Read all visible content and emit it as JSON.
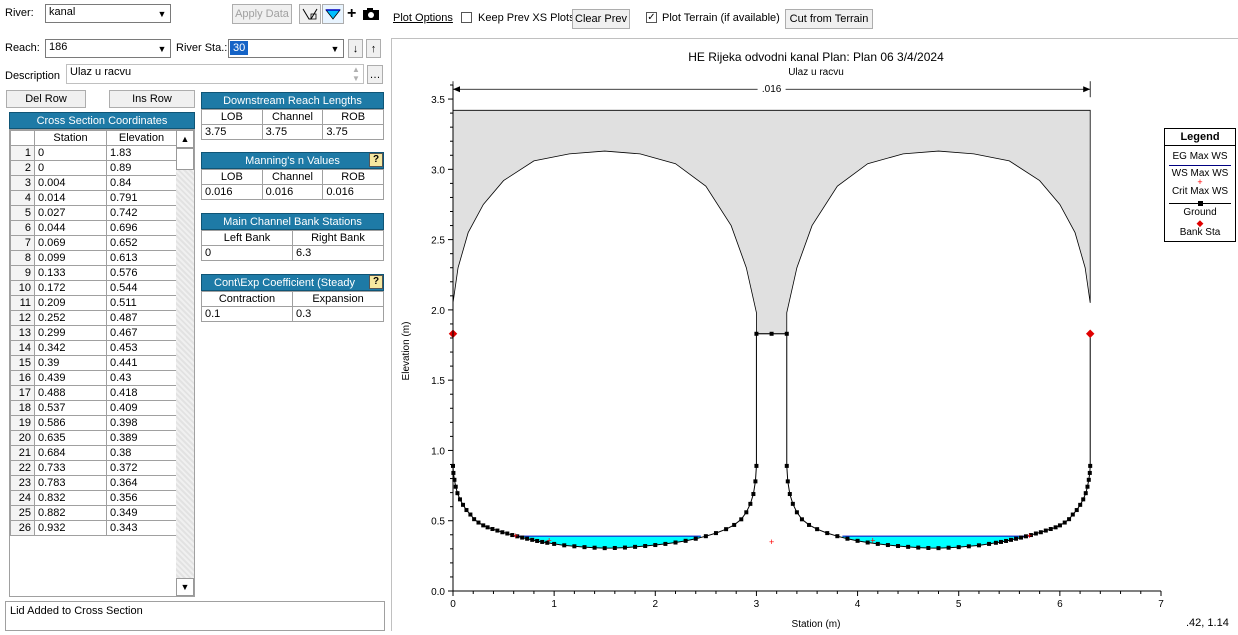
{
  "river": {
    "label": "River:",
    "value": "kanal"
  },
  "reach": {
    "label": "Reach:",
    "value": "186"
  },
  "river_sta": {
    "label": "River Sta.:",
    "value": "30"
  },
  "apply_data": "Apply Data",
  "description": {
    "label": "Description",
    "value": "Ulaz u racvu"
  },
  "del_row": "Del Row",
  "ins_row": "Ins Row",
  "coords": {
    "title": "Cross Section Coordinates",
    "col_station": "Station",
    "col_elevation": "Elevation",
    "rows": [
      {
        "n": "1",
        "station": "0",
        "elevation": "1.83"
      },
      {
        "n": "2",
        "station": "0",
        "elevation": "0.89"
      },
      {
        "n": "3",
        "station": "0.004",
        "elevation": "0.84"
      },
      {
        "n": "4",
        "station": "0.014",
        "elevation": "0.791"
      },
      {
        "n": "5",
        "station": "0.027",
        "elevation": "0.742"
      },
      {
        "n": "6",
        "station": "0.044",
        "elevation": "0.696"
      },
      {
        "n": "7",
        "station": "0.069",
        "elevation": "0.652"
      },
      {
        "n": "8",
        "station": "0.099",
        "elevation": "0.613"
      },
      {
        "n": "9",
        "station": "0.133",
        "elevation": "0.576"
      },
      {
        "n": "10",
        "station": "0.172",
        "elevation": "0.544"
      },
      {
        "n": "11",
        "station": "0.209",
        "elevation": "0.511"
      },
      {
        "n": "12",
        "station": "0.252",
        "elevation": "0.487"
      },
      {
        "n": "13",
        "station": "0.299",
        "elevation": "0.467"
      },
      {
        "n": "14",
        "station": "0.342",
        "elevation": "0.453"
      },
      {
        "n": "15",
        "station": "0.39",
        "elevation": "0.441"
      },
      {
        "n": "16",
        "station": "0.439",
        "elevation": "0.43"
      },
      {
        "n": "17",
        "station": "0.488",
        "elevation": "0.418"
      },
      {
        "n": "18",
        "station": "0.537",
        "elevation": "0.409"
      },
      {
        "n": "19",
        "station": "0.586",
        "elevation": "0.398"
      },
      {
        "n": "20",
        "station": "0.635",
        "elevation": "0.389"
      },
      {
        "n": "21",
        "station": "0.684",
        "elevation": "0.38"
      },
      {
        "n": "22",
        "station": "0.733",
        "elevation": "0.372"
      },
      {
        "n": "23",
        "station": "0.783",
        "elevation": "0.364"
      },
      {
        "n": "24",
        "station": "0.832",
        "elevation": "0.356"
      },
      {
        "n": "25",
        "station": "0.882",
        "elevation": "0.349"
      },
      {
        "n": "26",
        "station": "0.932",
        "elevation": "0.343"
      }
    ]
  },
  "reach_lengths": {
    "title": "Downstream Reach Lengths",
    "lob_label": "LOB",
    "channel_label": "Channel",
    "rob_label": "ROB",
    "lob": "3.75",
    "channel": "3.75",
    "rob": "3.75"
  },
  "manning": {
    "title": "Manning's n Values",
    "help": "?",
    "lob_label": "LOB",
    "channel_label": "Channel",
    "rob_label": "ROB",
    "lob": "0.016",
    "channel": "0.016",
    "rob": "0.016"
  },
  "bank": {
    "title": "Main Channel Bank Stations",
    "left_label": "Left Bank",
    "right_label": "Right Bank",
    "left": "0",
    "right": "6.3"
  },
  "contexp": {
    "title": "Cont\\Exp Coefficient (Steady",
    "help": "?",
    "contraction_label": "Contraction",
    "expansion_label": "Expansion",
    "contraction": "0.1",
    "expansion": "0.3"
  },
  "status_text": "Lid Added to Cross Section",
  "plot_toolbar": {
    "plot_options": "Plot Options",
    "keep_prev": "Keep Prev XS Plots",
    "keep_prev_checked": false,
    "clear_prev": "Clear Prev",
    "plot_terrain": "Plot Terrain (if available)",
    "plot_terrain_checked": true,
    "cut_from_terrain": "Cut from Terrain"
  },
  "coord_readout": ".42, 1.14",
  "icons": [
    "zoom-xs-icon",
    "water-surface-icon",
    "add-icon",
    "camera-icon",
    "arrow-down-icon",
    "arrow-up-icon",
    "ellipsis-icon"
  ],
  "colors": {
    "header_blue": "#1e7aa6",
    "water": "#00ffff",
    "lid_fill": "#e0e0e0",
    "bank_sta": "#e00000",
    "crit": "#ff0000"
  },
  "chart_data": {
    "type": "line",
    "title": "HE Rijeka odvodni kanal      Plan: Plan 06    3/4/2024",
    "subtitle": "Ulaz u racvu",
    "xlabel": "Station (m)",
    "ylabel": "Elevation (m)",
    "xlim": [
      0,
      7
    ],
    "ylim": [
      0,
      3.6
    ],
    "xticks": [
      "0",
      "1",
      "2",
      "3",
      "4",
      "5",
      "6",
      "7"
    ],
    "yticks": [
      "0.0",
      "0.5",
      "1.0",
      "1.5",
      "2.0",
      "2.5",
      "3.0",
      "3.5"
    ],
    "manning_label": ".016",
    "lid_top": 3.42,
    "ground": [
      [
        0,
        1.83
      ],
      [
        0,
        0.89
      ],
      [
        0.004,
        0.84
      ],
      [
        0.014,
        0.791
      ],
      [
        0.027,
        0.742
      ],
      [
        0.044,
        0.696
      ],
      [
        0.069,
        0.652
      ],
      [
        0.099,
        0.613
      ],
      [
        0.133,
        0.576
      ],
      [
        0.172,
        0.544
      ],
      [
        0.209,
        0.511
      ],
      [
        0.252,
        0.487
      ],
      [
        0.299,
        0.467
      ],
      [
        0.342,
        0.453
      ],
      [
        0.39,
        0.441
      ],
      [
        0.439,
        0.43
      ],
      [
        0.488,
        0.418
      ],
      [
        0.537,
        0.409
      ],
      [
        0.586,
        0.398
      ],
      [
        0.635,
        0.389
      ],
      [
        0.684,
        0.38
      ],
      [
        0.733,
        0.372
      ],
      [
        0.783,
        0.364
      ],
      [
        0.832,
        0.356
      ],
      [
        0.882,
        0.349
      ],
      [
        0.932,
        0.343
      ],
      [
        1.0,
        0.335
      ],
      [
        1.1,
        0.325
      ],
      [
        1.2,
        0.318
      ],
      [
        1.3,
        0.312
      ],
      [
        1.4,
        0.308
      ],
      [
        1.5,
        0.305
      ],
      [
        1.6,
        0.306
      ],
      [
        1.7,
        0.309
      ],
      [
        1.8,
        0.314
      ],
      [
        1.9,
        0.32
      ],
      [
        2.0,
        0.327
      ],
      [
        2.1,
        0.335
      ],
      [
        2.2,
        0.345
      ],
      [
        2.3,
        0.357
      ],
      [
        2.4,
        0.372
      ],
      [
        2.5,
        0.39
      ],
      [
        2.6,
        0.412
      ],
      [
        2.7,
        0.44
      ],
      [
        2.78,
        0.47
      ],
      [
        2.85,
        0.51
      ],
      [
        2.9,
        0.56
      ],
      [
        2.94,
        0.62
      ],
      [
        2.97,
        0.69
      ],
      [
        2.99,
        0.78
      ],
      [
        3.0,
        0.89
      ],
      [
        3.0,
        1.83
      ],
      [
        3.15,
        1.83
      ],
      [
        3.3,
        1.83
      ],
      [
        3.3,
        0.89
      ],
      [
        3.31,
        0.78
      ],
      [
        3.33,
        0.69
      ],
      [
        3.36,
        0.62
      ],
      [
        3.4,
        0.56
      ],
      [
        3.45,
        0.51
      ],
      [
        3.52,
        0.47
      ],
      [
        3.6,
        0.44
      ],
      [
        3.7,
        0.412
      ],
      [
        3.8,
        0.39
      ],
      [
        3.9,
        0.372
      ],
      [
        4.0,
        0.357
      ],
      [
        4.1,
        0.345
      ],
      [
        4.2,
        0.335
      ],
      [
        4.3,
        0.327
      ],
      [
        4.4,
        0.32
      ],
      [
        4.5,
        0.314
      ],
      [
        4.6,
        0.309
      ],
      [
        4.7,
        0.306
      ],
      [
        4.8,
        0.305
      ],
      [
        4.9,
        0.308
      ],
      [
        5.0,
        0.312
      ],
      [
        5.1,
        0.318
      ],
      [
        5.2,
        0.325
      ],
      [
        5.3,
        0.335
      ],
      [
        5.368,
        0.343
      ],
      [
        5.418,
        0.349
      ],
      [
        5.468,
        0.356
      ],
      [
        5.517,
        0.364
      ],
      [
        5.567,
        0.372
      ],
      [
        5.616,
        0.38
      ],
      [
        5.665,
        0.389
      ],
      [
        5.714,
        0.398
      ],
      [
        5.763,
        0.409
      ],
      [
        5.812,
        0.418
      ],
      [
        5.861,
        0.43
      ],
      [
        5.91,
        0.441
      ],
      [
        5.958,
        0.453
      ],
      [
        6.001,
        0.467
      ],
      [
        6.048,
        0.487
      ],
      [
        6.091,
        0.511
      ],
      [
        6.128,
        0.544
      ],
      [
        6.167,
        0.576
      ],
      [
        6.201,
        0.613
      ],
      [
        6.231,
        0.652
      ],
      [
        6.256,
        0.696
      ],
      [
        6.273,
        0.742
      ],
      [
        6.286,
        0.791
      ],
      [
        6.296,
        0.84
      ],
      [
        6.3,
        0.89
      ],
      [
        6.3,
        1.83
      ]
    ],
    "lid": [
      [
        0,
        2.05
      ],
      [
        0.05,
        2.3
      ],
      [
        0.15,
        2.55
      ],
      [
        0.3,
        2.75
      ],
      [
        0.5,
        2.92
      ],
      [
        0.8,
        3.06
      ],
      [
        1.15,
        3.11
      ],
      [
        1.5,
        3.13
      ],
      [
        1.85,
        3.11
      ],
      [
        2.2,
        3.04
      ],
      [
        2.5,
        2.88
      ],
      [
        2.75,
        2.6
      ],
      [
        2.9,
        2.3
      ],
      [
        3.0,
        1.98
      ],
      [
        3.0,
        1.83
      ],
      [
        3.3,
        1.83
      ],
      [
        3.3,
        1.98
      ],
      [
        3.4,
        2.3
      ],
      [
        3.55,
        2.6
      ],
      [
        3.8,
        2.88
      ],
      [
        4.1,
        3.04
      ],
      [
        4.45,
        3.11
      ],
      [
        4.8,
        3.13
      ],
      [
        5.15,
        3.11
      ],
      [
        5.5,
        3.06
      ],
      [
        5.8,
        2.92
      ],
      [
        6.0,
        2.75
      ],
      [
        6.15,
        2.55
      ],
      [
        6.25,
        2.3
      ],
      [
        6.3,
        2.05
      ]
    ],
    "ws_left": [
      0.6,
      2.45,
      0.39
    ],
    "ws_right": [
      3.85,
      5.7,
      0.39
    ],
    "crit_points": [
      [
        0.62,
        0.39
      ],
      [
        0.95,
        0.36
      ],
      [
        3.15,
        0.35
      ],
      [
        4.15,
        0.36
      ],
      [
        5.7,
        0.39
      ]
    ],
    "bank_sta": [
      [
        0,
        1.83
      ],
      [
        6.3,
        1.83
      ]
    ],
    "legend": {
      "title": "Legend",
      "items": [
        "EG Max WS",
        "WS Max WS",
        "Crit Max WS",
        "Ground",
        "Bank Sta"
      ]
    }
  }
}
